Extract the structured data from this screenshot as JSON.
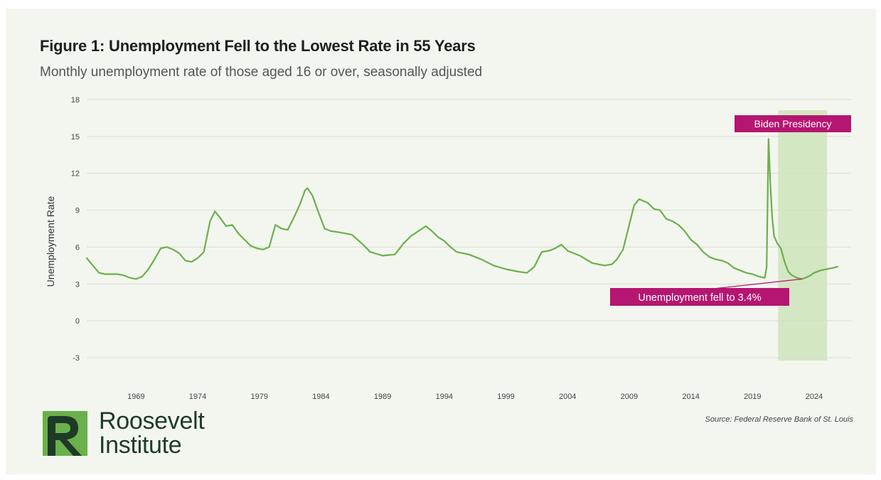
{
  "chart_data": {
    "type": "line",
    "title": "Figure 1: Unemployment Fell to the Lowest Rate in 55 Years",
    "subtitle": "Monthly unemployment rate of those aged 16 or over, seasonally adjusted",
    "xlabel": "",
    "ylabel": "Unemployment Rate",
    "ylim": [
      -3,
      18
    ],
    "yticks": [
      18,
      15,
      12,
      9,
      6,
      3,
      0,
      -3
    ],
    "xlim": [
      1965,
      2027
    ],
    "xticks": [
      1969,
      1974,
      1979,
      1984,
      1989,
      1994,
      1999,
      2004,
      2009,
      2014,
      2019,
      2024
    ],
    "grid": "horizontal",
    "line_color": "#6ab04c",
    "series": [
      {
        "name": "",
        "x": [
          1965.0,
          1965.5,
          1966.0,
          1966.5,
          1967.0,
          1967.5,
          1968.0,
          1968.5,
          1969.0,
          1969.5,
          1970.0,
          1970.5,
          1971.0,
          1971.5,
          1972.0,
          1972.5,
          1973.0,
          1973.5,
          1974.0,
          1974.5,
          1975.0,
          1975.4,
          1975.8,
          1976.3,
          1976.8,
          1977.3,
          1977.8,
          1978.3,
          1978.8,
          1979.3,
          1979.8,
          1980.3,
          1980.8,
          1981.3,
          1981.8,
          1982.3,
          1982.7,
          1982.9,
          1983.3,
          1983.8,
          1984.3,
          1984.8,
          1985.5,
          1986.5,
          1987.3,
          1988.0,
          1989.0,
          1990.0,
          1990.7,
          1991.3,
          1991.9,
          1992.5,
          1993.0,
          1993.5,
          1994.0,
          1994.5,
          1995.0,
          1996.0,
          1997.0,
          1998.0,
          1999.0,
          2000.0,
          2000.7,
          2001.3,
          2001.9,
          2002.5,
          2003.0,
          2003.5,
          2004.0,
          2004.5,
          2005.0,
          2006.0,
          2007.0,
          2007.6,
          2008.0,
          2008.5,
          2009.0,
          2009.4,
          2009.8,
          2010.5,
          2011.0,
          2011.5,
          2012.0,
          2012.5,
          2013.0,
          2013.5,
          2014.0,
          2014.5,
          2015.0,
          2015.5,
          2016.0,
          2016.5,
          2017.0,
          2017.5,
          2018.0,
          2018.5,
          2019.0,
          2019.5,
          2020.0,
          2020.15,
          2020.3,
          2020.45,
          2020.6,
          2020.75,
          2021.0,
          2021.3,
          2021.6,
          2021.9,
          2022.2,
          2022.6,
          2023.0,
          2023.3,
          2023.7,
          2024.0,
          2024.5,
          2025.0,
          2025.5,
          2025.9
        ],
        "y": [
          5.1,
          4.5,
          3.9,
          3.8,
          3.8,
          3.8,
          3.7,
          3.5,
          3.4,
          3.6,
          4.2,
          5.0,
          5.9,
          6.0,
          5.8,
          5.5,
          4.9,
          4.8,
          5.1,
          5.6,
          8.1,
          8.9,
          8.4,
          7.7,
          7.8,
          7.1,
          6.6,
          6.1,
          5.9,
          5.8,
          6.0,
          7.8,
          7.5,
          7.4,
          8.4,
          9.5,
          10.6,
          10.8,
          10.2,
          8.8,
          7.5,
          7.3,
          7.2,
          7.0,
          6.3,
          5.6,
          5.3,
          5.4,
          6.3,
          6.9,
          7.3,
          7.7,
          7.3,
          6.8,
          6.5,
          6.0,
          5.6,
          5.4,
          5.0,
          4.5,
          4.2,
          4.0,
          3.9,
          4.4,
          5.6,
          5.7,
          5.9,
          6.2,
          5.7,
          5.5,
          5.3,
          4.7,
          4.5,
          4.6,
          5.0,
          5.8,
          7.8,
          9.4,
          9.9,
          9.6,
          9.1,
          9.0,
          8.3,
          8.1,
          7.8,
          7.3,
          6.6,
          6.2,
          5.6,
          5.2,
          5.0,
          4.9,
          4.7,
          4.3,
          4.1,
          3.9,
          3.8,
          3.6,
          3.5,
          4.4,
          14.8,
          11.1,
          8.4,
          6.9,
          6.3,
          5.9,
          4.8,
          4.0,
          3.7,
          3.5,
          3.4,
          3.5,
          3.7,
          3.9,
          4.1,
          4.2,
          4.3,
          4.4
        ]
      }
    ],
    "annotations": {
      "shade_label": "Biden Presidency",
      "shade_range": [
        2021.08,
        2025.05
      ],
      "shade_color": "#d4e7c3",
      "low_label": "Unemployment fell to 3.4%",
      "low_point": [
        2023.0,
        3.4
      ],
      "label_color": "#b51671"
    }
  },
  "footer": {
    "brand_line1": "Roosevelt",
    "brand_line2": "Institute",
    "brand_color": "#6ab04c",
    "source": "Source: Federal Reserve Bank of St. Louis"
  }
}
